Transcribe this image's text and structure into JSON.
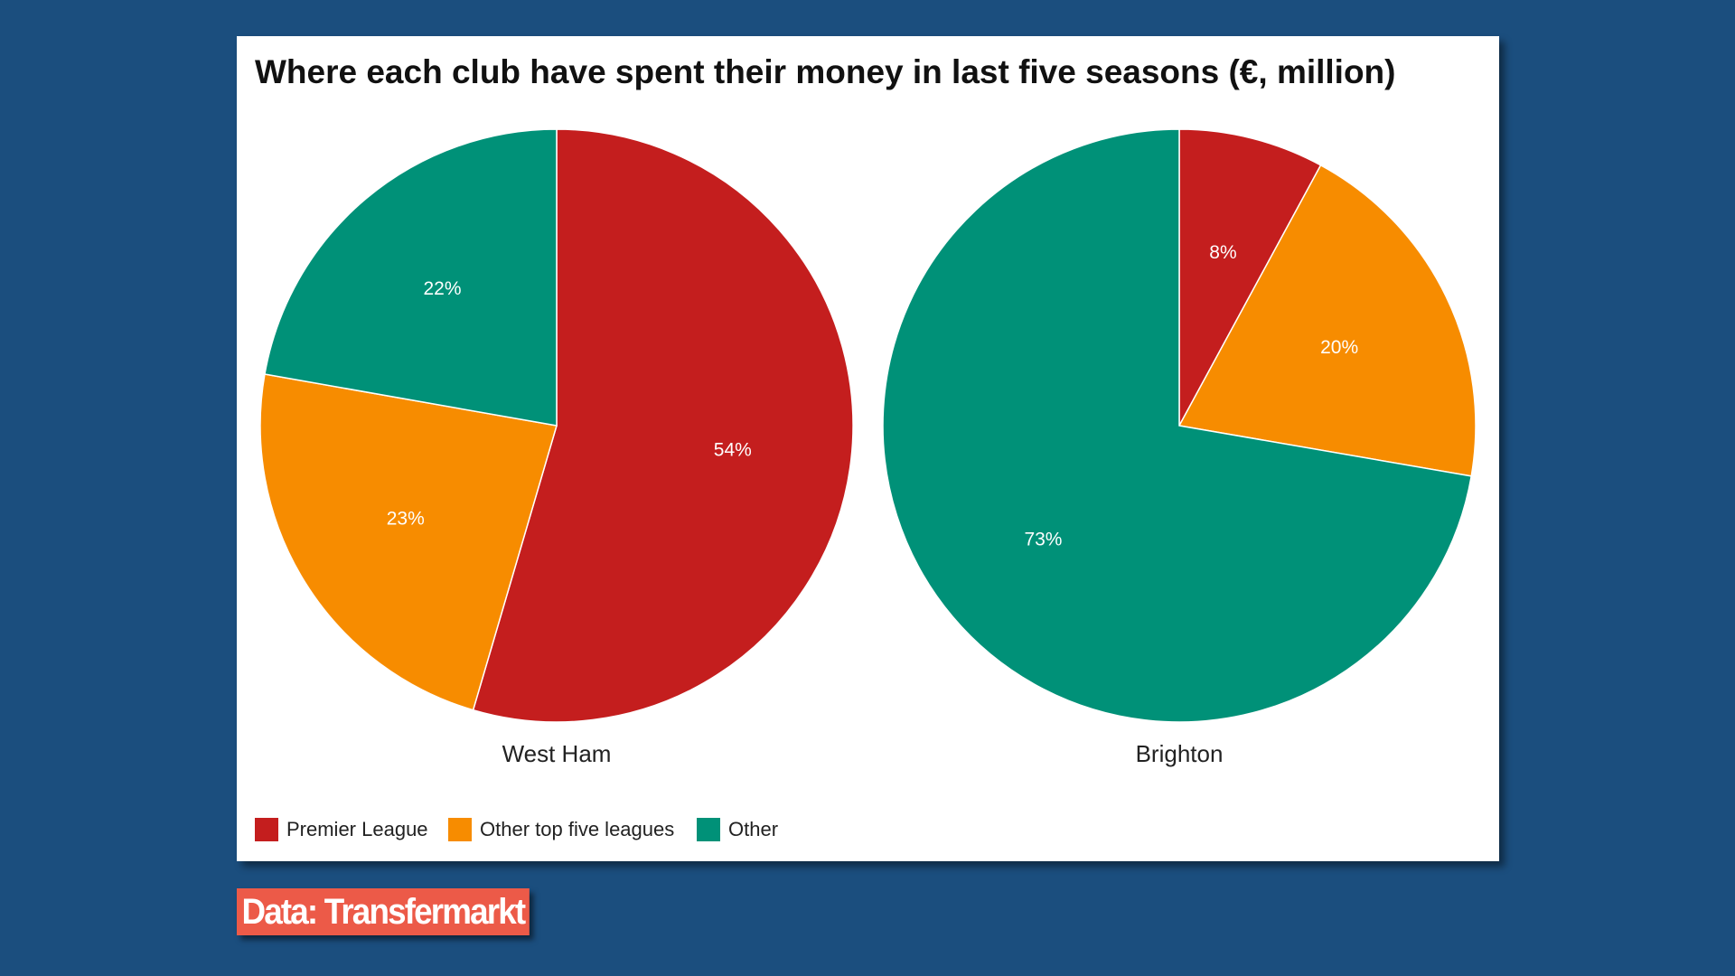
{
  "title": "Where each club have spent their money in last five seasons (€, million)",
  "source": "Data: Transfermarkt",
  "chart_data": [
    {
      "type": "pie",
      "title": "West Ham",
      "categories": [
        "Premier League",
        "Other top five leagues",
        "Other"
      ],
      "values": [
        54,
        23,
        22
      ],
      "value_labels": [
        "54%",
        "23%",
        "22%"
      ],
      "colors": [
        "#c41e1e",
        "#f78c00",
        "#009178"
      ]
    },
    {
      "type": "pie",
      "title": "Brighton",
      "categories": [
        "Premier League",
        "Other top five leagues",
        "Other"
      ],
      "values": [
        8,
        20,
        73
      ],
      "value_labels": [
        "8%",
        "20%",
        "73%"
      ],
      "colors": [
        "#c41e1e",
        "#f78c00",
        "#009178"
      ]
    }
  ]
}
